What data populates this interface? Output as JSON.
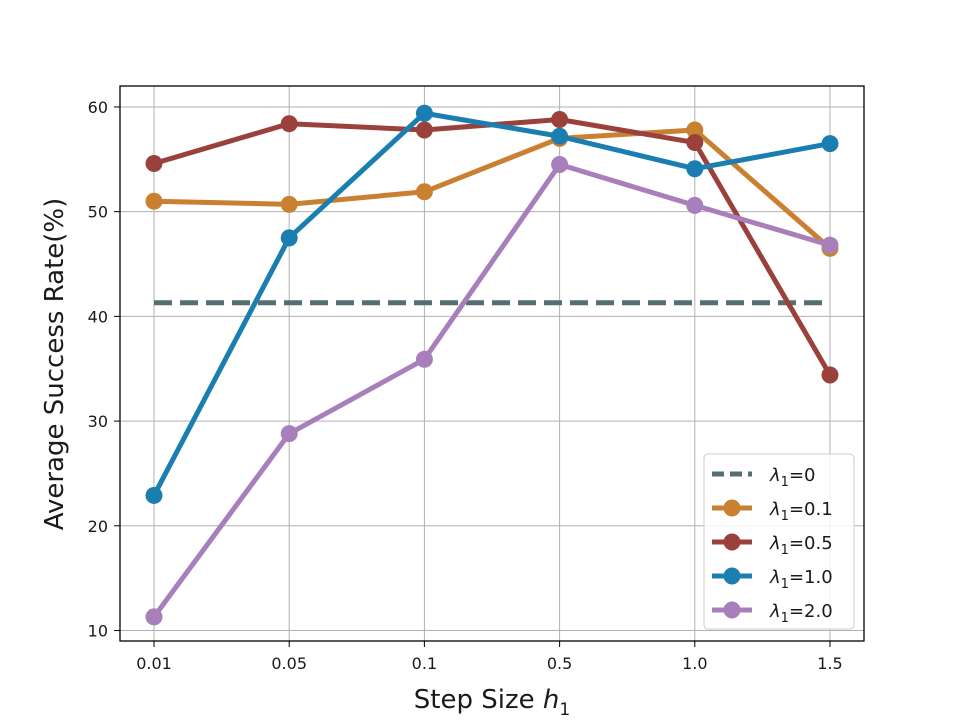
{
  "chart_data": {
    "type": "line",
    "title": "",
    "xlabel": "Step Size",
    "xlabel_symbol": "h",
    "xlabel_sub": "1",
    "ylabel": "Average Success Rate(%)",
    "categories": [
      "0.01",
      "0.05",
      "0.1",
      "0.5",
      "1.0",
      "1.5"
    ],
    "ylim": [
      9,
      62
    ],
    "yticks": [
      10,
      20,
      30,
      40,
      50,
      60
    ],
    "grid": true,
    "legend_position": "lower-right",
    "baseline": {
      "name_symbol": "λ",
      "name_sub": "1",
      "name_suffix": "=0",
      "value": 41.3,
      "color": "#546e73",
      "style": "dashed"
    },
    "series": [
      {
        "name_symbol": "λ",
        "name_sub": "1",
        "name_suffix": "=0.1",
        "color": "#c98030",
        "values": [
          51.0,
          50.7,
          51.9,
          57.0,
          57.8,
          46.5
        ]
      },
      {
        "name_symbol": "λ",
        "name_sub": "1",
        "name_suffix": "=0.5",
        "color": "#9a413c",
        "values": [
          54.6,
          58.4,
          57.8,
          58.8,
          56.6,
          34.4
        ]
      },
      {
        "name_symbol": "λ",
        "name_sub": "1",
        "name_suffix": "=1.0",
        "color": "#1a7fb0",
        "values": [
          22.9,
          47.5,
          59.4,
          57.2,
          54.1,
          56.5
        ]
      },
      {
        "name_symbol": "λ",
        "name_sub": "1",
        "name_suffix": "=2.0",
        "color": "#a87fbb",
        "values": [
          11.3,
          28.8,
          35.9,
          54.5,
          50.6,
          46.8
        ]
      }
    ]
  }
}
